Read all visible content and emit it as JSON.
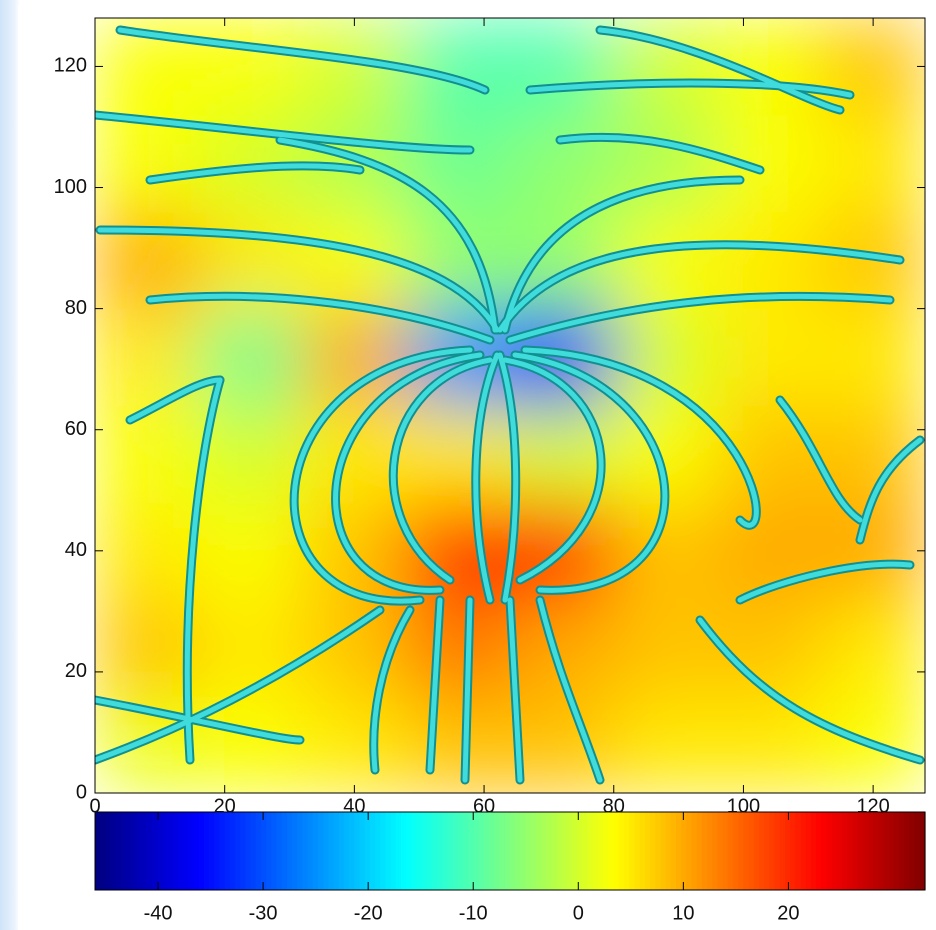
{
  "chart_data": {
    "type": "heatmap",
    "x": [
      8,
      24,
      40,
      56,
      72,
      88,
      104,
      120
    ],
    "y": [
      8,
      24,
      40,
      56,
      72,
      88,
      104,
      120
    ],
    "z": [
      [
        2,
        3,
        5,
        8,
        8,
        5,
        5,
        3
      ],
      [
        8,
        5,
        8,
        14,
        10,
        8,
        8,
        5
      ],
      [
        5,
        3,
        8,
        20,
        20,
        8,
        10,
        10
      ],
      [
        3,
        0,
        5,
        5,
        0,
        3,
        8,
        8
      ],
      [
        5,
        -8,
        10,
        -25,
        -35,
        0,
        5,
        5
      ],
      [
        10,
        5,
        3,
        -5,
        -5,
        3,
        5,
        8
      ],
      [
        3,
        0,
        -3,
        -8,
        -5,
        -3,
        3,
        5
      ],
      [
        3,
        3,
        0,
        -10,
        -10,
        0,
        3,
        8
      ]
    ],
    "xlim": [
      0,
      128
    ],
    "ylim": [
      0,
      128
    ],
    "xticks": [
      0,
      20,
      40,
      60,
      80,
      100,
      120
    ],
    "yticks": [
      0,
      20,
      40,
      60,
      80,
      100,
      120
    ],
    "zlim": [
      -46,
      33
    ],
    "zticks": [
      -40,
      -30,
      -20,
      -10,
      0,
      10,
      20
    ],
    "colormap": "jet"
  }
}
